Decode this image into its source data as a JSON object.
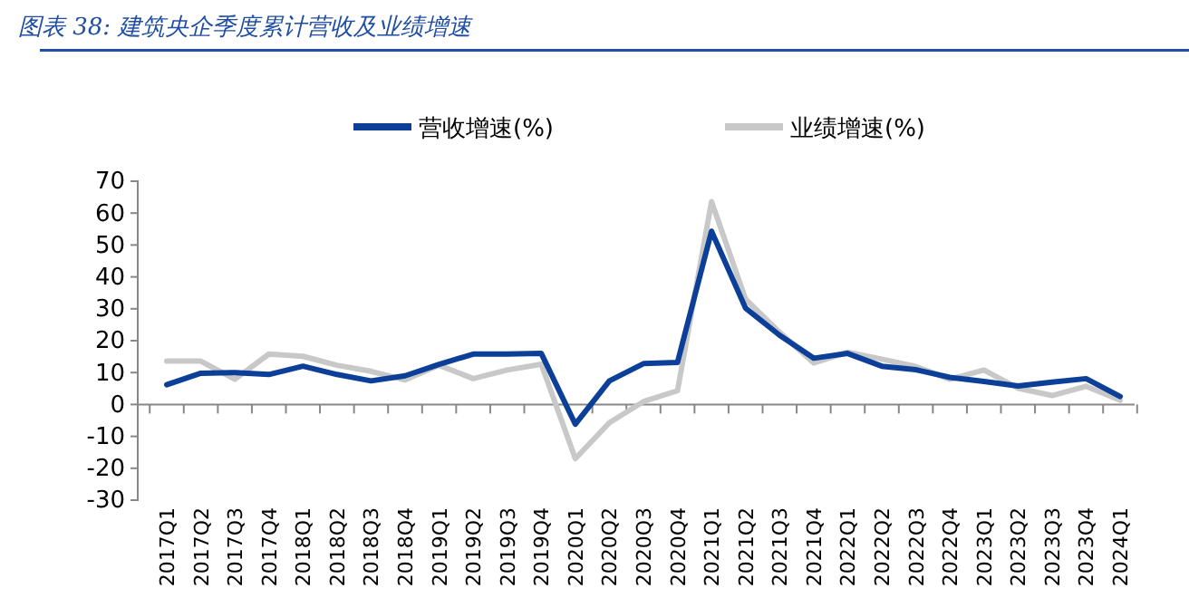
{
  "chart_data": {
    "type": "line",
    "title": "图表 38:  建筑央企季度累计营收及业绩增速",
    "categories": [
      "2017Q1",
      "2017Q2",
      "2017Q3",
      "2017Q4",
      "2018Q1",
      "2018Q2",
      "2018Q3",
      "2018Q4",
      "2019Q1",
      "2019Q2",
      "2019Q3",
      "2019Q4",
      "2020Q1",
      "2020Q2",
      "2020Q3",
      "2020Q4",
      "2021Q1",
      "2021Q2",
      "2021Q3",
      "2021Q4",
      "2022Q1",
      "2022Q2",
      "2022Q3",
      "2022Q4",
      "2023Q1",
      "2023Q2",
      "2023Q3",
      "2023Q4",
      "2024Q1"
    ],
    "series": [
      {
        "name": "营收增速(%)",
        "color": "#0b3f98",
        "values": [
          6.2,
          9.8,
          10,
          9.4,
          12,
          9.4,
          7.4,
          9,
          12.6,
          15.8,
          15.8,
          16,
          -6.2,
          7.4,
          12.8,
          13.2,
          54.3,
          30.2,
          21.7,
          14.5,
          16,
          12,
          10.9,
          8.5,
          7.2,
          5.8,
          7,
          8.1,
          2.5
        ]
      },
      {
        "name": "业绩增速(%)",
        "color": "#c8c8c8",
        "values": [
          13.6,
          13.6,
          7.9,
          15.8,
          15.1,
          12.3,
          10.4,
          7.7,
          12.3,
          8.1,
          10.8,
          12.6,
          -17,
          -5.7,
          0.9,
          4.3,
          63.6,
          33,
          22.6,
          13,
          16.4,
          14.2,
          11.9,
          7.9,
          10.8,
          5.1,
          2.8,
          5.7,
          1.3
        ]
      }
    ],
    "ylim": [
      -30,
      70
    ],
    "yticks": [
      -30,
      -20,
      -10,
      0,
      10,
      20,
      30,
      40,
      50,
      60,
      70
    ],
    "legend": "top",
    "marker": "none",
    "line_style": "solid"
  }
}
